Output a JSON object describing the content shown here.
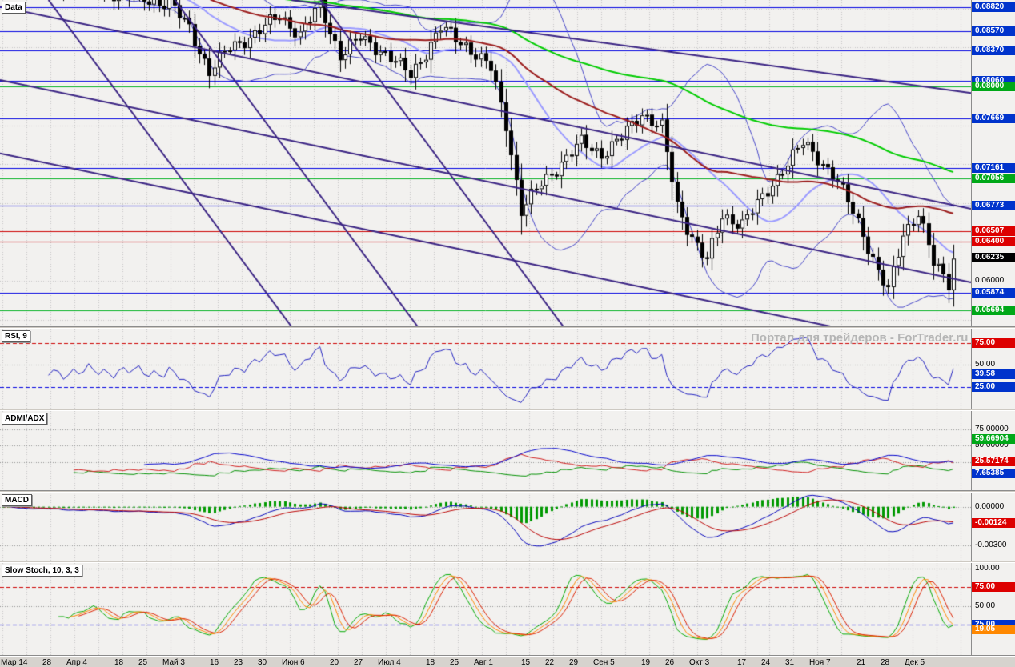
{
  "app": {
    "watermark": "Портал для трейдеров - ForTrader.ru"
  },
  "panels": {
    "main": {
      "label": "Data"
    },
    "rsi": {
      "label": "RSI, 9"
    },
    "adx": {
      "label": "ADMI/ADX"
    },
    "macd": {
      "label": "MACD"
    },
    "stoch": {
      "label": "Slow Stoch, 10, 3, 3"
    }
  },
  "colors": {
    "bg": "#f2f1ef",
    "axis_bg": "#d6d3ce",
    "grid": "#c4c4c4",
    "candle": "#000000",
    "bb": "#4646c8",
    "ma_mid": "#9a9aff",
    "ma_slow": "#9b1c1c",
    "ma_long": "#00cc00",
    "trend": "#3a2383",
    "level_blue": "#0000e0",
    "level_red": "#cc0000",
    "level_green": "#00b020",
    "level_grey": "#909090",
    "badge_blue": "#0033cc",
    "badge_red": "#dd0000",
    "badge_green": "#00a818",
    "badge_black": "#000000",
    "badge_orange": "#ff8800",
    "rsi_line": "#2020c0",
    "adx_green": "#009000",
    "adx_red": "#d02020",
    "adx_blue": "#0000cc",
    "macd_hist": "#009900",
    "macd_line": "#0000bb",
    "macd_signal": "#bb0000",
    "stoch_k": "#00aa00",
    "stoch_d": "#ff8800",
    "stoch_d2": "#dd2200",
    "watermark": "#b5b5b5"
  },
  "chart_data": {
    "type": "candlestick-multi-panel",
    "xaxis": {
      "ticks": [
        {
          "label": "Мар 14",
          "week": 0
        },
        {
          "label": "28",
          "week": 2
        },
        {
          "label": "Апр 4",
          "week": 3
        },
        {
          "label": "18",
          "week": 5
        },
        {
          "label": "25",
          "week": 6
        },
        {
          "label": "Май 3",
          "week": 7
        },
        {
          "label": "16",
          "week": 9
        },
        {
          "label": "23",
          "week": 10
        },
        {
          "label": "30",
          "week": 11
        },
        {
          "label": "Июн 6",
          "week": 12
        },
        {
          "label": "20",
          "week": 14
        },
        {
          "label": "27",
          "week": 15
        },
        {
          "label": "Июл 4",
          "week": 16
        },
        {
          "label": "18",
          "week": 18
        },
        {
          "label": "25",
          "week": 19
        },
        {
          "label": "Авг 1",
          "week": 20
        },
        {
          "label": "15",
          "week": 22
        },
        {
          "label": "22",
          "week": 23
        },
        {
          "label": "29",
          "week": 24
        },
        {
          "label": "Сен 5",
          "week": 25
        },
        {
          "label": "19",
          "week": 27
        },
        {
          "label": "26",
          "week": 28
        },
        {
          "label": "Окт 3",
          "week": 29
        },
        {
          "label": "17",
          "week": 31
        },
        {
          "label": "24",
          "week": 32
        },
        {
          "label": "31",
          "week": 33
        },
        {
          "label": "Ноя 7",
          "week": 34
        },
        {
          "label": "21",
          "week": 36
        },
        {
          "label": "28",
          "week": 37
        },
        {
          "label": "Дек 5",
          "week": 38
        }
      ],
      "weeks_total": 40
    },
    "main": {
      "ylim": [
        0.0553,
        0.0889
      ],
      "grid_step": 0.004,
      "last_price": 0.06235,
      "price_anchors": [
        [
          0,
          0.0915
        ],
        [
          19,
          0.09
        ],
        [
          33,
          0.0885
        ],
        [
          37,
          0.086
        ],
        [
          41,
          0.0815
        ],
        [
          45,
          0.084
        ],
        [
          51,
          0.0857
        ],
        [
          55,
          0.0874
        ],
        [
          59,
          0.0853
        ],
        [
          63,
          0.0884
        ],
        [
          67,
          0.0832
        ],
        [
          71,
          0.085
        ],
        [
          75,
          0.0838
        ],
        [
          81,
          0.0812
        ],
        [
          87,
          0.086
        ],
        [
          92,
          0.0843
        ],
        [
          97,
          0.0818
        ],
        [
          100,
          0.0762
        ],
        [
          103,
          0.0672
        ],
        [
          107,
          0.07
        ],
        [
          111,
          0.0722
        ],
        [
          115,
          0.0742
        ],
        [
          119,
          0.0731
        ],
        [
          123,
          0.0747
        ],
        [
          127,
          0.0773
        ],
        [
          131,
          0.0758
        ],
        [
          134,
          0.0676
        ],
        [
          137,
          0.0646
        ],
        [
          140,
          0.062
        ],
        [
          143,
          0.0666
        ],
        [
          147,
          0.066
        ],
        [
          151,
          0.0684
        ],
        [
          155,
          0.0716
        ],
        [
          159,
          0.0741
        ],
        [
          162,
          0.0727
        ],
        [
          165,
          0.071
        ],
        [
          168,
          0.0681
        ],
        [
          171,
          0.0649
        ],
        [
          174,
          0.061
        ],
        [
          176,
          0.0588
        ],
        [
          179,
          0.0648
        ],
        [
          182,
          0.0672
        ],
        [
          185,
          0.0617
        ],
        [
          188,
          0.0597
        ],
        [
          189,
          0.0624
        ]
      ],
      "levels": [
        {
          "text": "0.08820",
          "value": 0.0882,
          "color": "blue",
          "badge": true,
          "line": "solid"
        },
        {
          "text": "0.08570",
          "value": 0.0857,
          "color": "blue",
          "badge": true,
          "line": "solid"
        },
        {
          "text": "0.08370",
          "value": 0.0837,
          "color": "blue",
          "badge": true,
          "line": "solid"
        },
        {
          "text": "0.08060",
          "value": 0.0806,
          "color": "blue",
          "badge": true,
          "line": "solid"
        },
        {
          "text": "0.08000",
          "value": 0.08,
          "color": "green",
          "badge": true,
          "line": "solid"
        },
        {
          "text": "0.07669",
          "value": 0.07669,
          "color": "blue",
          "badge": true,
          "line": "solid"
        },
        {
          "text": "0.07161",
          "value": 0.07161,
          "color": "blue",
          "badge": true,
          "line": "solid"
        },
        {
          "text": "0.07056",
          "value": 0.07056,
          "color": "green",
          "badge": true,
          "line": "solid"
        },
        {
          "text": "0.06773",
          "value": 0.06773,
          "color": "blue",
          "badge": true,
          "line": "solid"
        },
        {
          "text": "0.06507",
          "value": 0.06507,
          "color": "red",
          "badge": true,
          "line": "solid"
        },
        {
          "text": "0.06400",
          "value": 0.064,
          "color": "red",
          "badge": true,
          "line": "solid"
        },
        {
          "text": "0.06235",
          "value": 0.06235,
          "color": "black",
          "badge": true,
          "line": "none"
        },
        {
          "text": "0.06000",
          "value": 0.06,
          "color": "black",
          "badge": false,
          "line": "none"
        },
        {
          "text": "0.05874",
          "value": 0.05874,
          "color": "blue",
          "badge": true,
          "line": "solid"
        },
        {
          "text": "0.05694",
          "value": 0.05694,
          "color": "green",
          "badge": true,
          "line": "solid"
        }
      ],
      "trendlines": [
        {
          "x1": 0.05,
          "y1": 0,
          "x2": 0.3,
          "y2": 1
        },
        {
          "x1": 0.18,
          "y1": 0,
          "x2": 0.43,
          "y2": 1
        },
        {
          "x1": 0.33,
          "y1": 0,
          "x2": 0.58,
          "y2": 1
        },
        {
          "x1": 0,
          "y1": 0.02,
          "x2": 1,
          "y2": 0.64
        },
        {
          "x1": 0,
          "y1": 0.245,
          "x2": 1,
          "y2": 0.865
        },
        {
          "x1": 0,
          "y1": 0.47,
          "x2": 0.855,
          "y2": 1
        },
        {
          "x1": 0.3,
          "y1": 0,
          "x2": 1,
          "y2": 0.285
        }
      ]
    },
    "rsi": {
      "ylim": [
        0,
        91
      ],
      "current": 39.58,
      "levels": [
        {
          "text": "75.00",
          "value": 75,
          "color": "red",
          "badge": true,
          "line": "dash"
        },
        {
          "text": "50.00",
          "value": 50,
          "color": "grey",
          "badge": false,
          "line": "dot"
        },
        {
          "text": "39.58",
          "value": 39.58,
          "color": "blue",
          "badge": true,
          "line": "none"
        },
        {
          "text": "25.00",
          "value": 25,
          "color": "blue",
          "badge": true,
          "line": "dash"
        }
      ]
    },
    "adx": {
      "ylim": [
        -18,
        103
      ],
      "current": {
        "green_line": 59.66904,
        "red_line": 25.57174,
        "blue_line": 7.65385
      },
      "levels": [
        {
          "text": "75.00000",
          "value": 75,
          "color": "grey",
          "badge": false,
          "line": "dot"
        },
        {
          "text": "59.66904",
          "value": 59.66904,
          "color": "green",
          "badge": true,
          "line": "none"
        },
        {
          "text": "50.00000",
          "value": 50,
          "color": "grey",
          "badge": false,
          "line": "dot"
        },
        {
          "text": "25.57174",
          "value": 25.57174,
          "color": "red",
          "badge": true,
          "line": "none"
        },
        {
          "text": "",
          "value": 25,
          "color": "grey",
          "badge": false,
          "line": "dot"
        },
        {
          "text": "7.65385",
          "value": 7.65385,
          "color": "blue",
          "badge": true,
          "line": "none"
        }
      ]
    },
    "macd": {
      "ylim": [
        -0.0042,
        0.0011
      ],
      "current": -0.00124,
      "levels": [
        {
          "text": "0.00000",
          "value": 0,
          "color": "grey",
          "badge": false,
          "line": "dot"
        },
        {
          "text": "-0.00124",
          "value": -0.00124,
          "color": "red",
          "badge": true,
          "line": "none"
        },
        {
          "text": "-0.00300",
          "value": -0.003,
          "color": "grey",
          "badge": false,
          "line": "dot"
        }
      ]
    },
    "stoch": {
      "ylim": [
        -15,
        107
      ],
      "current": 19.05,
      "levels": [
        {
          "text": "100.00",
          "value": 100,
          "color": "grey",
          "badge": false,
          "line": "dot"
        },
        {
          "text": "75.00",
          "value": 75,
          "color": "red",
          "badge": true,
          "line": "dash"
        },
        {
          "text": "50.00",
          "value": 50,
          "color": "grey",
          "badge": false,
          "line": "dot"
        },
        {
          "text": "25.00",
          "value": 25,
          "color": "blue",
          "badge": true,
          "line": "dash"
        },
        {
          "text": "19.05",
          "value": 19.05,
          "color": "orange",
          "badge": true,
          "line": "none"
        }
      ]
    }
  }
}
